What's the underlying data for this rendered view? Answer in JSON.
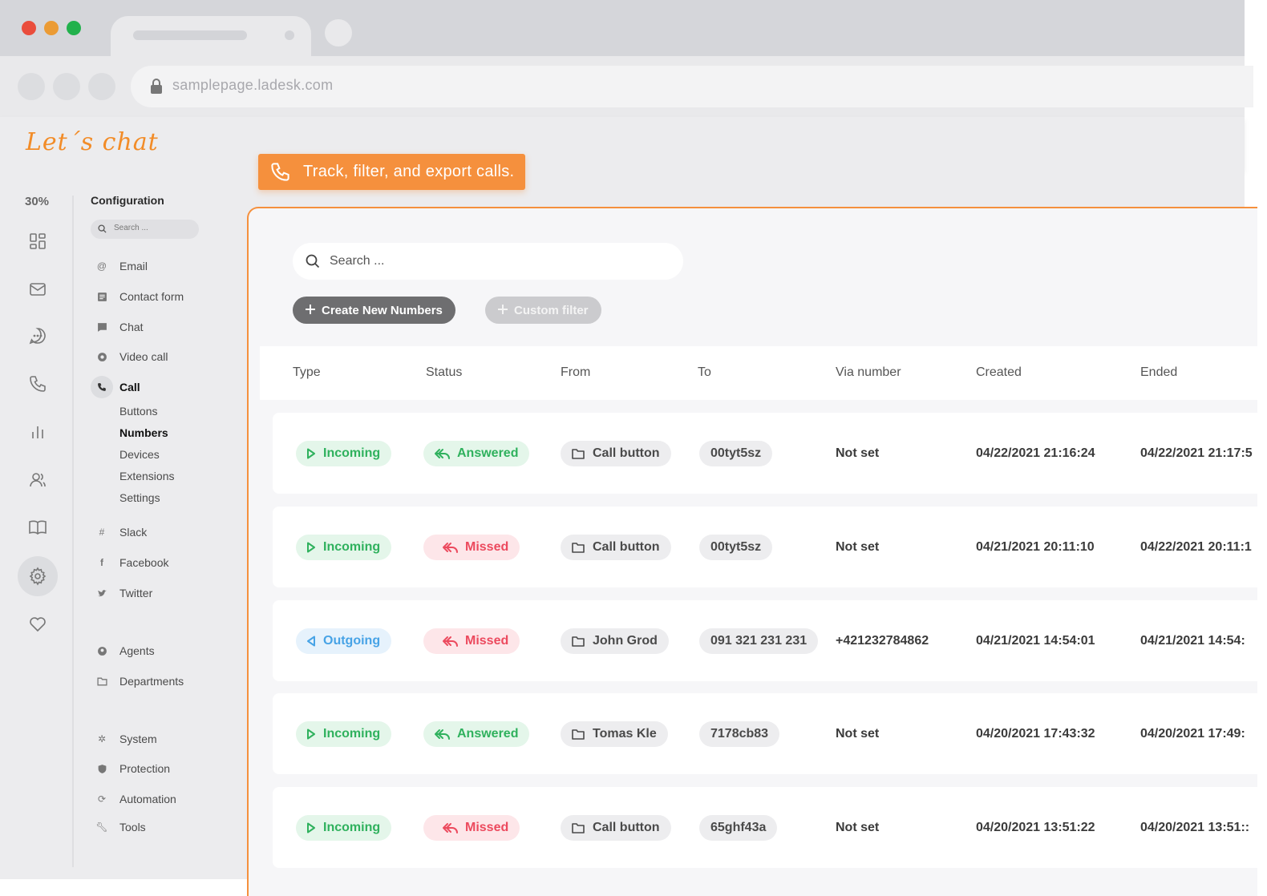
{
  "browser": {
    "url": "samplepage.ladesk.com"
  },
  "app": {
    "brand": "Let´s chat"
  },
  "callout": {
    "text": "Track, filter, and export calls."
  },
  "rail": {
    "percent": "30%"
  },
  "config": {
    "title": "Configuration",
    "search_placeholder": "Search ...",
    "items": {
      "email": "Email",
      "contact_form": "Contact form",
      "chat": "Chat",
      "video_call": "Video call",
      "call": "Call",
      "slack": "Slack",
      "facebook": "Facebook",
      "twitter": "Twitter",
      "agents": "Agents",
      "departments": "Departments",
      "system": "System",
      "protection": "Protection",
      "automation": "Automation",
      "tools": "Tools"
    },
    "call_sub": {
      "buttons": "Buttons",
      "numbers": "Numbers",
      "devices": "Devices",
      "extensions": "Extensions",
      "settings": "Settings"
    }
  },
  "main": {
    "search_placeholder": "Search ...",
    "create_button": "Create New Numbers",
    "filter_button": "Custom filter",
    "columns": {
      "type": "Type",
      "status": "Status",
      "from": "From",
      "to": "To",
      "via": "Via number",
      "created": "Created",
      "ended": "Ended"
    },
    "rows": [
      {
        "type": "Incoming",
        "status": "Answered",
        "from": "Call button",
        "to": "00tyt5sz",
        "via": "Not set",
        "created": "04/22/2021 21:16:24",
        "ended": "04/22/2021 21:17:5"
      },
      {
        "type": "Incoming",
        "status": "Missed",
        "from": "Call button",
        "to": "00tyt5sz",
        "via": "Not set",
        "created": "04/21/2021 20:11:10",
        "ended": "04/22/2021 20:11:1"
      },
      {
        "type": "Outgoing",
        "status": "Missed",
        "from": "John Grod",
        "to": "091 321 231 231",
        "via": "+421232784862",
        "created": "04/21/2021 14:54:01",
        "ended": "04/21/2021 14:54:"
      },
      {
        "type": "Incoming",
        "status": "Answered",
        "from": "Tomas Kle",
        "to": "7178cb83",
        "via": "Not set",
        "created": "04/20/2021 17:43:32",
        "ended": "04/20/2021 17:49:"
      },
      {
        "type": "Incoming",
        "status": "Missed",
        "from": "Call button",
        "to": "65ghf43a",
        "via": "Not set",
        "created": "04/20/2021 13:51:22",
        "ended": "04/20/2021 13:51::"
      }
    ]
  },
  "colors": {
    "accent": "#f5903d",
    "incoming": "#2fb15d",
    "outgoing": "#47a3e6",
    "missed": "#ec4a5e"
  }
}
